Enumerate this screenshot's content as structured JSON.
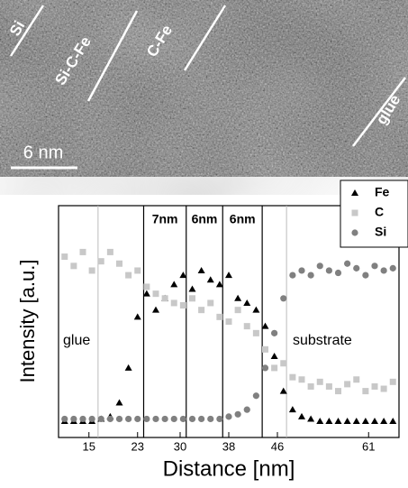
{
  "image": {
    "labels": [
      "Si",
      "Si-C-Fe",
      "C-Fe",
      "glue"
    ],
    "scale_bar": "6 nm"
  },
  "chart_data": {
    "type": "scatter",
    "xlabel": "Distance [nm]",
    "ylabel": "Intensity [a.u.]",
    "x": [
      11,
      12.5,
      14,
      15.5,
      17,
      18.5,
      20,
      21.5,
      23,
      24.5,
      26,
      27.5,
      29,
      30.5,
      32,
      33.5,
      35,
      36.5,
      38,
      39.5,
      41,
      42.5,
      44,
      45.5,
      47,
      48.5,
      50,
      51.5,
      53,
      54.5,
      56,
      57.5,
      59,
      60.5,
      62,
      63.5,
      65
    ],
    "series": [
      {
        "name": "Fe",
        "color": "#000000",
        "marker": "triangle",
        "values": [
          0.07,
          0.07,
          0.07,
          0.07,
          0.08,
          0.09,
          0.15,
          0.3,
          0.52,
          0.62,
          0.55,
          0.6,
          0.66,
          0.7,
          0.64,
          0.72,
          0.68,
          0.66,
          0.7,
          0.6,
          0.58,
          0.55,
          0.48,
          0.35,
          0.2,
          0.12,
          0.09,
          0.08,
          0.07,
          0.07,
          0.07,
          0.07,
          0.07,
          0.07,
          0.07,
          0.07,
          0.07
        ]
      },
      {
        "name": "C",
        "color": "#c8c8c8",
        "marker": "square",
        "values": [
          0.78,
          0.74,
          0.8,
          0.72,
          0.76,
          0.8,
          0.75,
          0.7,
          0.72,
          0.65,
          0.62,
          0.6,
          0.58,
          0.57,
          0.6,
          0.55,
          0.58,
          0.52,
          0.5,
          0.55,
          0.48,
          0.45,
          0.38,
          0.3,
          0.32,
          0.26,
          0.25,
          0.22,
          0.24,
          0.22,
          0.2,
          0.23,
          0.25,
          0.2,
          0.22,
          0.21,
          0.24
        ]
      },
      {
        "name": "Si",
        "color": "#808080",
        "marker": "circle",
        "values": [
          0.08,
          0.08,
          0.08,
          0.08,
          0.08,
          0.08,
          0.08,
          0.08,
          0.08,
          0.08,
          0.08,
          0.08,
          0.08,
          0.08,
          0.08,
          0.08,
          0.08,
          0.08,
          0.09,
          0.1,
          0.12,
          0.18,
          0.3,
          0.45,
          0.6,
          0.7,
          0.72,
          0.7,
          0.74,
          0.72,
          0.71,
          0.75,
          0.73,
          0.7,
          0.74,
          0.72,
          0.73
        ]
      }
    ],
    "xlim": [
      10,
      66
    ],
    "ylim": [
      0,
      1
    ],
    "xticks": [
      15,
      23,
      30,
      38,
      46,
      61
    ],
    "vlines": [
      24,
      31,
      37,
      43.5
    ],
    "vlines_color": "#000000",
    "minor_vlines": [
      16.5,
      47.5
    ],
    "minor_vlines_color": "#bbbbbb",
    "span_labels": [
      "7nm",
      "6nm",
      "6nm"
    ],
    "annotations": [
      "glue",
      "substrate"
    ],
    "legend": "upper right"
  }
}
